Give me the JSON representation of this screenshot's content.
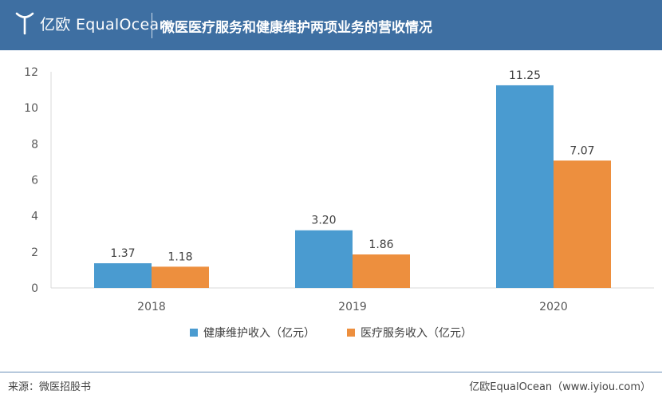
{
  "header": {
    "logo_text": "亿欧 EqualOcean",
    "title": "微医医疗服务和健康维护两项业务的营收情况"
  },
  "chart_data": {
    "type": "bar",
    "title": "微医医疗服务和健康维护两项业务的营收情况",
    "categories": [
      "2018",
      "2019",
      "2020"
    ],
    "series": [
      {
        "name": "健康维护收入（亿元）",
        "values": [
          1.37,
          3.2,
          11.25
        ],
        "labels": [
          "1.37",
          "3.20",
          "11.25"
        ],
        "color": "#4a9bd0"
      },
      {
        "name": "医疗服务收入（亿元）",
        "values": [
          1.18,
          1.86,
          7.07
        ],
        "labels": [
          "1.18",
          "1.86",
          "7.07"
        ],
        "color": "#ed8f3e"
      }
    ],
    "ylim": [
      0,
      12
    ],
    "yticks": [
      0,
      2,
      4,
      6,
      8,
      10,
      12
    ],
    "xlabel": "",
    "ylabel": "",
    "grid": false,
    "legend": "bottom"
  },
  "footer": {
    "source": "来源：微医招股书",
    "credit": "亿欧EqualOcean（www.iyiou.com）"
  }
}
